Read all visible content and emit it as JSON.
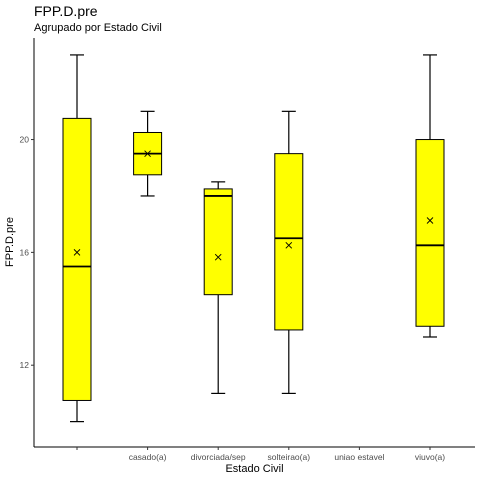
{
  "chart_data": {
    "type": "boxplot",
    "title": "FPP.D.pre",
    "subtitle": "Agrupado por Estado Civil",
    "xlabel": "Estado Civil",
    "ylabel": "FPP.D.pre",
    "ylim": [
      9.5,
      23.5
    ],
    "yticks": [
      12,
      16,
      20
    ],
    "grid": false,
    "box_fill": "#ffff00",
    "categories": [
      "",
      "casado(a)",
      "divorciada/sep",
      "solteirao(a)",
      "uniao estavel",
      "viuvo(a)"
    ],
    "boxes": [
      {
        "category": "",
        "min": 10,
        "q1": 10.75,
        "median": 15.5,
        "q3": 20.75,
        "max": 23,
        "mean": 16
      },
      {
        "category": "casado(a)",
        "min": 18,
        "q1": 18.75,
        "median": 19.5,
        "q3": 20.25,
        "max": 21,
        "mean": 19.5
      },
      {
        "category": "divorciada/sep",
        "min": 11,
        "q1": 14.5,
        "median": 18,
        "q3": 18.25,
        "max": 18.5,
        "mean": 15.83
      },
      {
        "category": "solteirao(a)",
        "min": 11,
        "q1": 13.25,
        "median": 16.5,
        "q3": 19.5,
        "max": 21,
        "mean": 16.25
      },
      {
        "category": "uniao estavel",
        "min": null,
        "q1": null,
        "median": null,
        "q3": null,
        "max": null,
        "mean": null
      },
      {
        "category": "viuvo(a)",
        "min": 13,
        "q1": 13.38,
        "median": 16.25,
        "q3": 20,
        "max": 23,
        "mean": 17.13
      }
    ]
  }
}
